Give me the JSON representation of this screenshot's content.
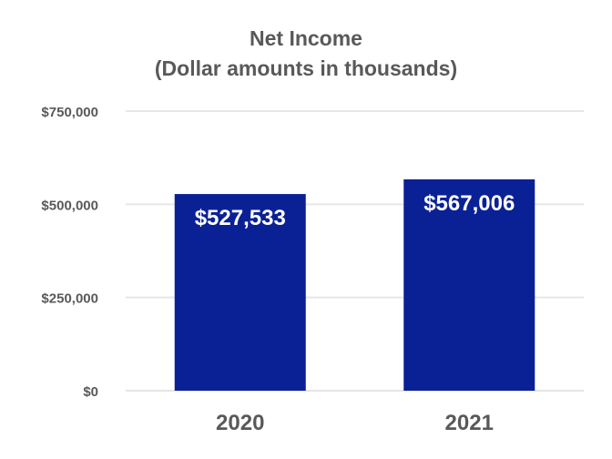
{
  "chart_data": {
    "type": "bar",
    "title": "Net Income",
    "subtitle": "(Dollar amounts in thousands)",
    "categories": [
      "2020",
      "2021"
    ],
    "values": [
      527533,
      567006
    ],
    "data_labels": [
      "$527,533",
      "$567,006"
    ],
    "ylim": [
      0,
      750000
    ],
    "yticks": [
      0,
      250000,
      500000,
      750000
    ],
    "ytick_labels": [
      "$0",
      "$250,000",
      "$500,000",
      "$750,000"
    ],
    "xlabel": "",
    "ylabel": "",
    "grid": true,
    "legend": "none",
    "bar_color": "#0a2196",
    "grid_color": "#e6e6e6",
    "tick_label_color": "#595959",
    "data_label_color": "#ffffff"
  }
}
